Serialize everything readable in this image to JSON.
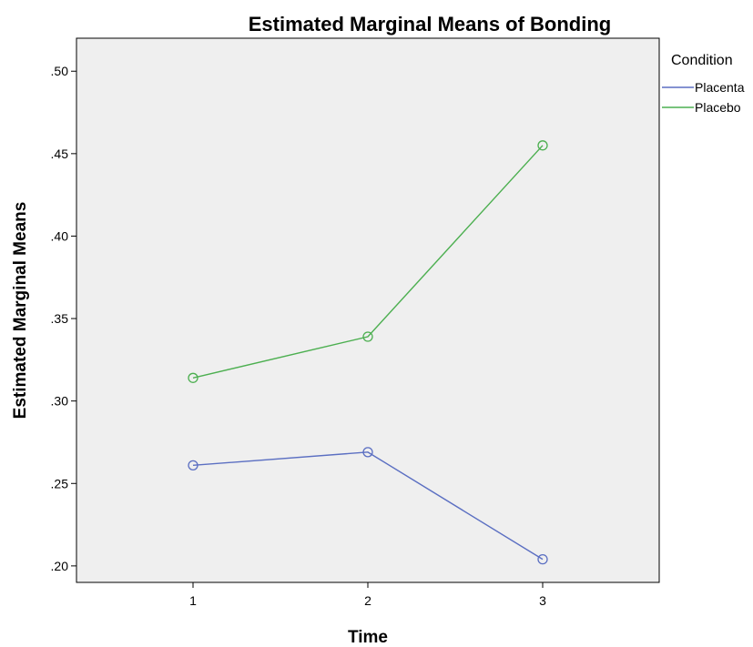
{
  "chart_data": {
    "type": "line",
    "title": "Estimated Marginal Means of Bonding",
    "xlabel": "Time",
    "ylabel": "Estimated Marginal Means",
    "categories": [
      "1",
      "2",
      "3"
    ],
    "ylim": [
      0.19,
      0.52
    ],
    "yticks": [
      ".20",
      ".25",
      ".30",
      ".35",
      ".40",
      ".45",
      ".50"
    ],
    "ytick_values": [
      0.2,
      0.25,
      0.3,
      0.35,
      0.4,
      0.45,
      0.5
    ],
    "grid": false,
    "legend": {
      "title": "Condition",
      "placement": "top-right"
    },
    "plot_background": "#efefef",
    "series": [
      {
        "name": "Placenta",
        "color": "#5b6fc2",
        "values": [
          0.261,
          0.269,
          0.204
        ]
      },
      {
        "name": "Placebo",
        "color": "#4caf50",
        "values": [
          0.314,
          0.339,
          0.455
        ]
      }
    ]
  }
}
